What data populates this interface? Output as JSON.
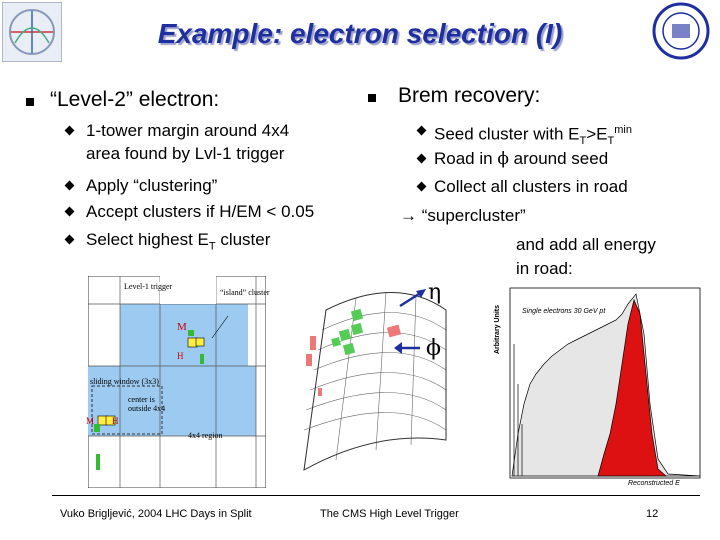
{
  "slide": {
    "title": "Example: electron selection (I)",
    "left": {
      "heading": "“Level-2” electron:",
      "items": [
        {
          "line1": "1-tower margin around 4x4",
          "line2": "area found by Lvl-1 trigger"
        },
        {
          "line1": "Apply “clustering”"
        },
        {
          "line1": "Accept clusters if H/EM < 0.05"
        },
        {
          "line1": "Select highest E",
          "sub": "T",
          "rest": " cluster"
        }
      ]
    },
    "right": {
      "heading": "Brem recovery:",
      "items": [
        {
          "pre": "Seed cluster with E",
          "sub1": "T",
          "mid": ">E",
          "sub2": "T",
          "sup": "min"
        },
        {
          "pre": "Road in ",
          "sym": "ϕ",
          "post": " around seed"
        },
        {
          "pre": "Collect all clusters in road"
        }
      ],
      "arrow_line": "→ “supercluster”",
      "cont1": "and add all energy",
      "cont2": "in road:"
    },
    "diagram": {
      "lbl_trigger": "Level-1 trigger",
      "lbl_island": "“island” cluster",
      "lbl_m": "M",
      "lbl_h": "H",
      "lbl_sliding": "sliding window (3x3)",
      "lbl_center1": "center is",
      "lbl_center2": "outside 4x4",
      "lbl_m2": "M",
      "lbl_h2": "H",
      "lbl_region": "4x4 region"
    },
    "eta_label": "η",
    "phi_label": "ϕ",
    "hist": {
      "title": "Single electrons 30 GeV pt",
      "ylabel": "Arbitrary Units",
      "xlabel": "Reconstructed E"
    },
    "footer": {
      "author": "Vuko Brigljević, 2004 LHC Days in Split",
      "center": "The CMS High Level Trigger",
      "page": "12"
    }
  }
}
